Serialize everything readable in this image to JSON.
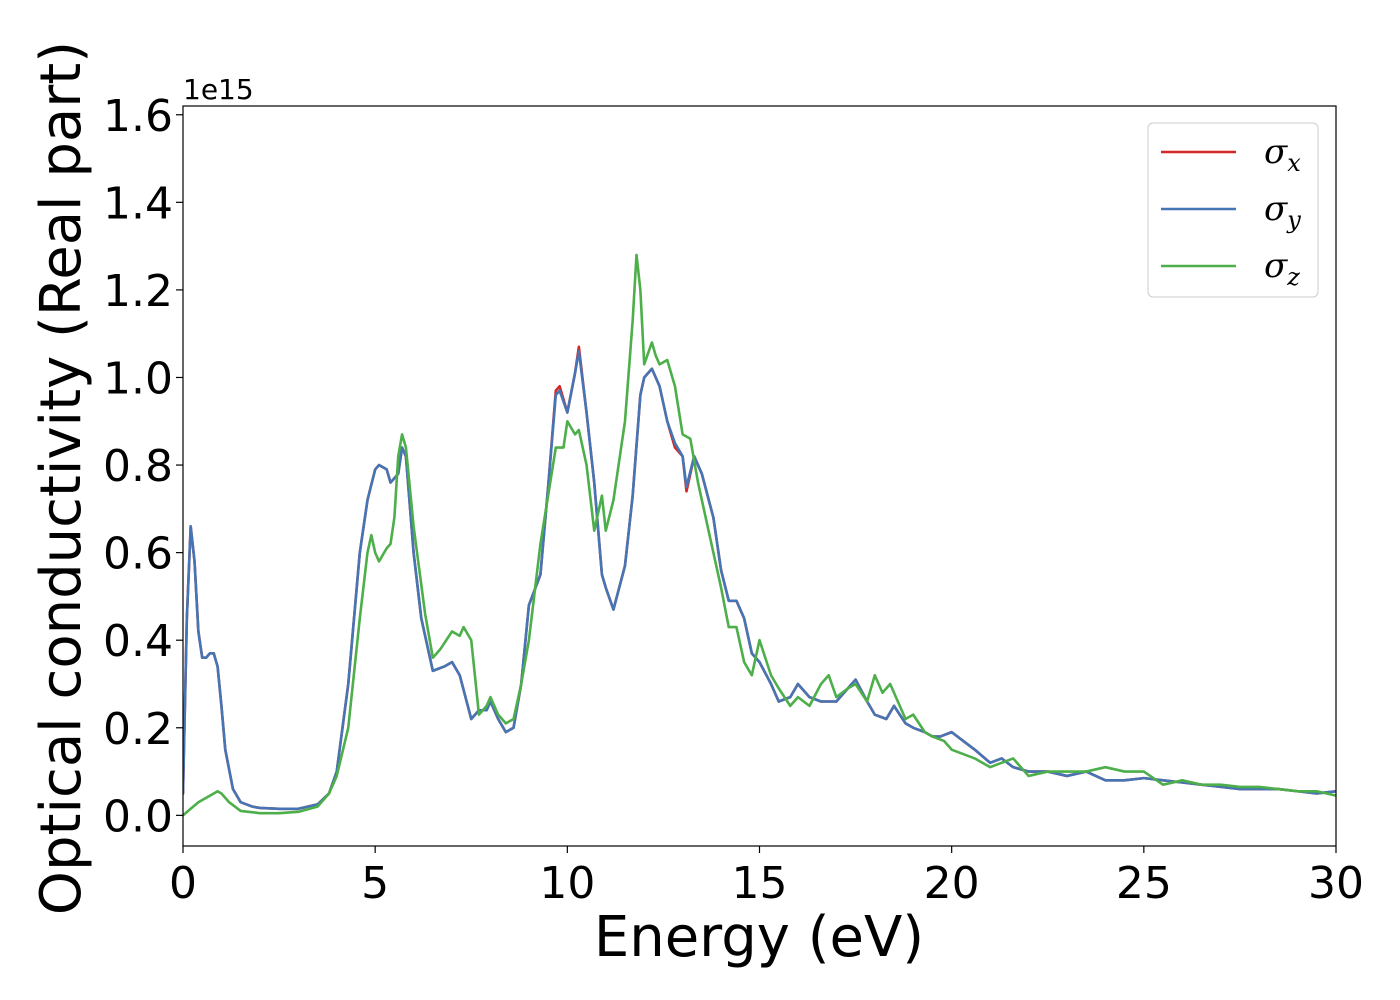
{
  "chart_data": {
    "type": "line",
    "xlabel": "Energy (eV)",
    "ylabel": "Optical conductivity (Real part)",
    "y_offset_text": "1e15",
    "xlim": [
      0,
      30
    ],
    "ylim": [
      -0.07,
      1.62
    ],
    "x_ticks": [
      0,
      5,
      10,
      15,
      20,
      25,
      30
    ],
    "x_tick_labels": [
      "0",
      "5",
      "10",
      "15",
      "20",
      "25",
      "30"
    ],
    "y_ticks": [
      0.0,
      0.2,
      0.4,
      0.6,
      0.8,
      1.0,
      1.2,
      1.4,
      1.6
    ],
    "y_tick_labels": [
      "0.0",
      "0.2",
      "0.4",
      "0.6",
      "0.8",
      "1.0",
      "1.2",
      "1.4",
      "1.6"
    ],
    "grid": false,
    "legend_position": "top-right",
    "series": [
      {
        "name": "σx",
        "symbol": "σ",
        "subscript": "x",
        "color": "#d62728",
        "x": [
          0,
          0.1,
          0.2,
          0.3,
          0.4,
          0.5,
          0.6,
          0.7,
          0.8,
          0.9,
          1.0,
          1.1,
          1.3,
          1.5,
          1.8,
          2.0,
          2.5,
          3.0,
          3.5,
          3.8,
          4.0,
          4.3,
          4.6,
          4.8,
          5.0,
          5.1,
          5.3,
          5.4,
          5.6,
          5.7,
          5.8,
          6.0,
          6.2,
          6.5,
          6.8,
          7.0,
          7.2,
          7.5,
          7.7,
          7.9,
          8.0,
          8.2,
          8.4,
          8.6,
          8.8,
          9.0,
          9.3,
          9.5,
          9.7,
          9.8,
          10.0,
          10.2,
          10.3,
          10.5,
          10.7,
          10.9,
          11.0,
          11.2,
          11.5,
          11.7,
          11.9,
          12.0,
          12.2,
          12.4,
          12.6,
          12.8,
          13.0,
          13.1,
          13.3,
          13.5,
          13.8,
          14.0,
          14.2,
          14.4,
          14.6,
          14.8,
          15.0,
          15.3,
          15.5,
          15.8,
          16.0,
          16.3,
          16.6,
          17.0,
          17.3,
          17.5,
          17.8,
          18.0,
          18.3,
          18.5,
          18.8,
          19.0,
          19.3,
          19.5,
          19.7,
          20.0,
          20.3,
          20.6,
          21.0,
          21.3,
          21.6,
          22.0,
          22.5,
          23.0,
          23.5,
          24.0,
          24.5,
          25.0,
          25.5,
          26.0,
          26.5,
          27.0,
          27.5,
          28.0,
          28.5,
          29.0,
          29.5,
          30.0
        ],
        "y": [
          0.05,
          0.45,
          0.66,
          0.58,
          0.42,
          0.36,
          0.36,
          0.37,
          0.37,
          0.34,
          0.25,
          0.15,
          0.06,
          0.03,
          0.02,
          0.017,
          0.015,
          0.015,
          0.025,
          0.05,
          0.1,
          0.3,
          0.6,
          0.72,
          0.79,
          0.8,
          0.79,
          0.76,
          0.78,
          0.84,
          0.82,
          0.6,
          0.45,
          0.33,
          0.34,
          0.35,
          0.32,
          0.22,
          0.24,
          0.24,
          0.26,
          0.22,
          0.19,
          0.2,
          0.3,
          0.48,
          0.55,
          0.75,
          0.97,
          0.98,
          0.92,
          1.01,
          1.07,
          0.92,
          0.76,
          0.55,
          0.52,
          0.47,
          0.57,
          0.73,
          0.96,
          1.0,
          1.02,
          0.98,
          0.9,
          0.84,
          0.82,
          0.74,
          0.82,
          0.78,
          0.68,
          0.56,
          0.49,
          0.49,
          0.45,
          0.37,
          0.35,
          0.3,
          0.26,
          0.27,
          0.3,
          0.27,
          0.26,
          0.26,
          0.29,
          0.31,
          0.26,
          0.23,
          0.22,
          0.25,
          0.21,
          0.2,
          0.19,
          0.18,
          0.18,
          0.19,
          0.17,
          0.15,
          0.12,
          0.13,
          0.11,
          0.1,
          0.1,
          0.09,
          0.1,
          0.08,
          0.08,
          0.085,
          0.08,
          0.075,
          0.07,
          0.065,
          0.06,
          0.06,
          0.06,
          0.055,
          0.05,
          0.055
        ]
      },
      {
        "name": "σy",
        "symbol": "σ",
        "subscript": "y",
        "color": "#4575b4",
        "x": [
          0,
          0.1,
          0.2,
          0.3,
          0.4,
          0.5,
          0.6,
          0.7,
          0.8,
          0.9,
          1.0,
          1.1,
          1.3,
          1.5,
          1.8,
          2.0,
          2.5,
          3.0,
          3.5,
          3.8,
          4.0,
          4.3,
          4.6,
          4.8,
          5.0,
          5.1,
          5.3,
          5.4,
          5.6,
          5.7,
          5.8,
          6.0,
          6.2,
          6.5,
          6.8,
          7.0,
          7.2,
          7.5,
          7.7,
          7.9,
          8.0,
          8.2,
          8.4,
          8.6,
          8.8,
          9.0,
          9.3,
          9.5,
          9.7,
          9.8,
          10.0,
          10.2,
          10.3,
          10.5,
          10.7,
          10.9,
          11.0,
          11.2,
          11.5,
          11.7,
          11.9,
          12.0,
          12.2,
          12.4,
          12.6,
          12.8,
          13.0,
          13.1,
          13.3,
          13.5,
          13.8,
          14.0,
          14.2,
          14.4,
          14.6,
          14.8,
          15.0,
          15.3,
          15.5,
          15.8,
          16.0,
          16.3,
          16.6,
          17.0,
          17.3,
          17.5,
          17.8,
          18.0,
          18.3,
          18.5,
          18.8,
          19.0,
          19.3,
          19.5,
          19.7,
          20.0,
          20.3,
          20.6,
          21.0,
          21.3,
          21.6,
          22.0,
          22.5,
          23.0,
          23.5,
          24.0,
          24.5,
          25.0,
          25.5,
          26.0,
          26.5,
          27.0,
          27.5,
          28.0,
          28.5,
          29.0,
          29.5,
          30.0
        ],
        "y": [
          0.05,
          0.45,
          0.66,
          0.58,
          0.42,
          0.36,
          0.36,
          0.37,
          0.37,
          0.34,
          0.25,
          0.15,
          0.06,
          0.03,
          0.02,
          0.017,
          0.015,
          0.015,
          0.025,
          0.05,
          0.1,
          0.3,
          0.6,
          0.72,
          0.79,
          0.8,
          0.79,
          0.76,
          0.78,
          0.84,
          0.82,
          0.6,
          0.45,
          0.33,
          0.34,
          0.35,
          0.32,
          0.22,
          0.24,
          0.24,
          0.26,
          0.22,
          0.19,
          0.2,
          0.3,
          0.48,
          0.55,
          0.75,
          0.96,
          0.97,
          0.92,
          1.01,
          1.06,
          0.92,
          0.76,
          0.55,
          0.52,
          0.47,
          0.57,
          0.73,
          0.96,
          1.0,
          1.02,
          0.98,
          0.9,
          0.85,
          0.82,
          0.75,
          0.82,
          0.78,
          0.68,
          0.56,
          0.49,
          0.49,
          0.45,
          0.37,
          0.35,
          0.3,
          0.26,
          0.27,
          0.3,
          0.27,
          0.26,
          0.26,
          0.29,
          0.31,
          0.26,
          0.23,
          0.22,
          0.25,
          0.21,
          0.2,
          0.19,
          0.18,
          0.18,
          0.19,
          0.17,
          0.15,
          0.12,
          0.13,
          0.11,
          0.1,
          0.1,
          0.09,
          0.1,
          0.08,
          0.08,
          0.085,
          0.08,
          0.075,
          0.07,
          0.065,
          0.06,
          0.06,
          0.06,
          0.055,
          0.05,
          0.055
        ]
      },
      {
        "name": "σz",
        "symbol": "σ",
        "subscript": "z",
        "color": "#4daf4a",
        "x": [
          0,
          0.2,
          0.4,
          0.6,
          0.8,
          0.9,
          1.0,
          1.2,
          1.5,
          2.0,
          2.5,
          3.0,
          3.5,
          3.8,
          4.0,
          4.3,
          4.6,
          4.8,
          4.9,
          5.0,
          5.1,
          5.3,
          5.4,
          5.5,
          5.6,
          5.7,
          5.8,
          6.0,
          6.3,
          6.5,
          6.7,
          7.0,
          7.2,
          7.3,
          7.5,
          7.7,
          7.9,
          8.0,
          8.2,
          8.4,
          8.6,
          8.8,
          9.0,
          9.3,
          9.5,
          9.7,
          9.9,
          10.0,
          10.2,
          10.3,
          10.5,
          10.7,
          10.9,
          11.0,
          11.2,
          11.5,
          11.7,
          11.8,
          11.9,
          12.0,
          12.2,
          12.3,
          12.4,
          12.6,
          12.8,
          13.0,
          13.2,
          13.4,
          13.5,
          13.8,
          14.0,
          14.2,
          14.4,
          14.6,
          14.8,
          15.0,
          15.3,
          15.5,
          15.8,
          16.0,
          16.3,
          16.6,
          16.8,
          17.0,
          17.3,
          17.5,
          17.8,
          18.0,
          18.2,
          18.4,
          18.6,
          18.8,
          19.0,
          19.3,
          19.5,
          19.8,
          20.0,
          20.3,
          20.6,
          21.0,
          21.3,
          21.6,
          22.0,
          22.5,
          23.0,
          23.5,
          24.0,
          24.5,
          25.0,
          25.5,
          26.0,
          26.5,
          27.0,
          27.5,
          28.0,
          28.5,
          29.0,
          29.5,
          30.0
        ],
        "y": [
          0.0,
          0.015,
          0.03,
          0.04,
          0.05,
          0.055,
          0.05,
          0.03,
          0.01,
          0.005,
          0.005,
          0.008,
          0.02,
          0.05,
          0.09,
          0.2,
          0.45,
          0.6,
          0.64,
          0.6,
          0.58,
          0.61,
          0.62,
          0.68,
          0.82,
          0.87,
          0.84,
          0.66,
          0.46,
          0.36,
          0.38,
          0.42,
          0.41,
          0.43,
          0.4,
          0.23,
          0.25,
          0.27,
          0.23,
          0.21,
          0.22,
          0.3,
          0.4,
          0.62,
          0.73,
          0.84,
          0.84,
          0.9,
          0.87,
          0.88,
          0.8,
          0.65,
          0.73,
          0.65,
          0.72,
          0.9,
          1.13,
          1.28,
          1.2,
          1.03,
          1.08,
          1.05,
          1.03,
          1.04,
          0.98,
          0.87,
          0.86,
          0.76,
          0.72,
          0.6,
          0.52,
          0.43,
          0.43,
          0.35,
          0.32,
          0.4,
          0.32,
          0.29,
          0.25,
          0.27,
          0.25,
          0.3,
          0.32,
          0.27,
          0.29,
          0.3,
          0.26,
          0.32,
          0.28,
          0.3,
          0.26,
          0.22,
          0.23,
          0.19,
          0.18,
          0.17,
          0.15,
          0.14,
          0.13,
          0.11,
          0.12,
          0.13,
          0.09,
          0.1,
          0.1,
          0.1,
          0.11,
          0.1,
          0.1,
          0.07,
          0.08,
          0.07,
          0.07,
          0.065,
          0.065,
          0.06,
          0.055,
          0.055,
          0.045
        ]
      }
    ]
  }
}
